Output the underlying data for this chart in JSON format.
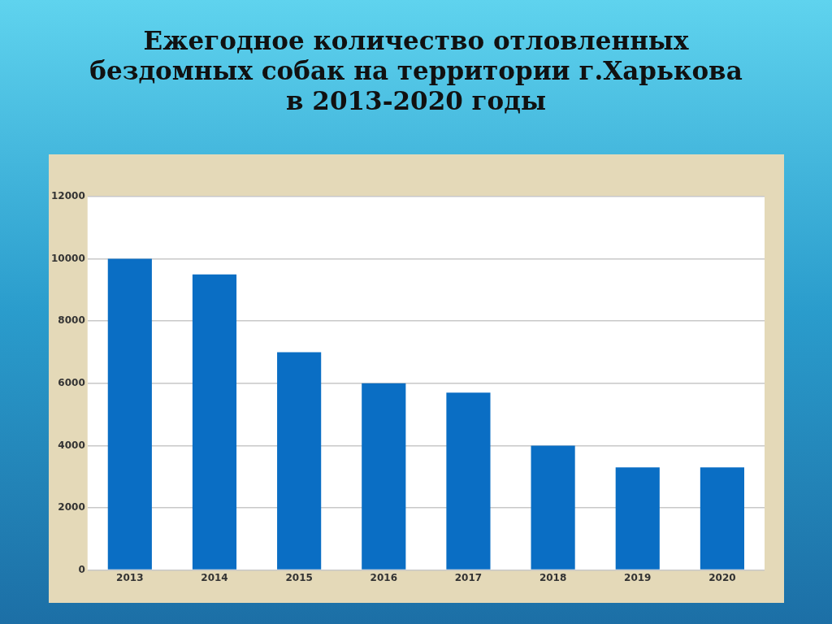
{
  "chart_data": {
    "type": "bar",
    "title": "Ежегодное количество отловленных бездомных собак на территории г.Харькова в 2013-2020 годы",
    "categories": [
      "2013",
      "2014",
      "2015",
      "2016",
      "2017",
      "2018",
      "2019",
      "2020"
    ],
    "values": [
      10000,
      9500,
      7000,
      6000,
      5700,
      4000,
      3300,
      3300
    ],
    "color": "#0a6ec4",
    "ylim": [
      0,
      12000
    ],
    "yticks": [
      0,
      2000,
      4000,
      6000,
      8000,
      10000,
      12000
    ],
    "grid": "y"
  }
}
